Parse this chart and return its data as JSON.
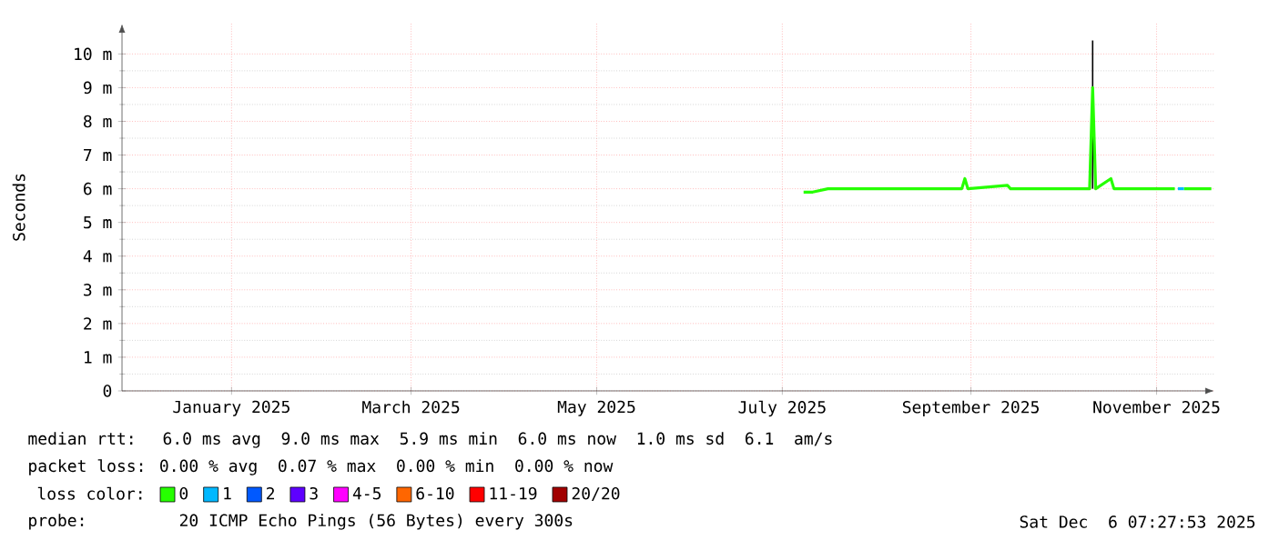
{
  "chart_data": {
    "type": "line",
    "ylabel": "Seconds",
    "legend_title": "loss color:",
    "xlim": [
      "2024-12-10",
      "2025-12-04"
    ],
    "xticks": [
      {
        "value": "2025-01-15",
        "label": "January 2025"
      },
      {
        "value": "2025-03-15",
        "label": "March 2025"
      },
      {
        "value": "2025-05-15",
        "label": "May 2025"
      },
      {
        "value": "2025-07-15",
        "label": "July 2025"
      },
      {
        "value": "2025-09-15",
        "label": "September 2025"
      },
      {
        "value": "2025-11-15",
        "label": "November 2025"
      }
    ],
    "ylim": [
      0,
      10.9
    ],
    "yticks": [
      0,
      {
        "value": 1,
        "label": "1 m"
      },
      {
        "value": 2,
        "label": "2 m"
      },
      {
        "value": 3,
        "label": "3 m"
      },
      {
        "value": 4,
        "label": "4 m"
      },
      {
        "value": 5,
        "label": "5 m"
      },
      {
        "value": 6,
        "label": "6 m"
      },
      {
        "value": 7,
        "label": "7 m"
      },
      {
        "value": 8,
        "label": "8 m"
      },
      {
        "value": 9,
        "label": "9 m"
      },
      {
        "value": 10,
        "label": "10 m"
      }
    ],
    "grid": true,
    "legend": "bottom",
    "series": [
      {
        "color": "#000000",
        "x": [
          "2025-10-25",
          "2025-10-25"
        ],
        "values": [
          6.0,
          10.4
        ]
      },
      {
        "name": "0",
        "color": "#26ff00",
        "x": [
          "2025-07-22",
          "2025-07-25",
          "2025-07-30",
          "2025-09-12",
          "2025-09-13",
          "2025-09-14",
          "2025-09-27",
          "2025-09-28",
          "2025-10-24",
          "2025-10-25",
          "2025-10-26",
          "2025-10-31",
          "2025-11-01",
          "2025-11-21",
          "2025-11-22",
          "2025-11-24",
          "2025-12-03"
        ],
        "values": [
          5.9,
          5.9,
          6.0,
          6.0,
          6.3,
          6.0,
          6.1,
          6.0,
          6.0,
          9.0,
          6.0,
          6.3,
          6.0,
          6.0,
          null,
          6.0,
          6.0
        ]
      },
      {
        "name": "1",
        "color": "#00b8ff",
        "x": [
          "2025-11-22",
          "2025-11-24"
        ],
        "values": [
          6.0,
          6.0
        ]
      },
      {
        "name": "2",
        "color": "#0059ff"
      },
      {
        "name": "3",
        "color": "#5e00ff"
      },
      {
        "name": "4-5",
        "color": "#ff00ff"
      },
      {
        "name": "6-10",
        "color": "#ff6600"
      },
      {
        "name": "11-19",
        "color": "#ff0000"
      },
      {
        "name": "20/20",
        "color": "#a10000"
      }
    ],
    "annotations": [
      "median rtt:  6.0 ms avg  9.0 ms max  5.9 ms min  6.0 ms now  1.0 ms sd  6.1  am/s",
      "packet loss: 0.00 % avg  0.07 % max  0.00 % min  0.00 % now",
      "probe:       20 ICMP Echo Pings (56 Bytes) every 300s",
      "Sat Dec  6 07:27:53 2025"
    ]
  }
}
